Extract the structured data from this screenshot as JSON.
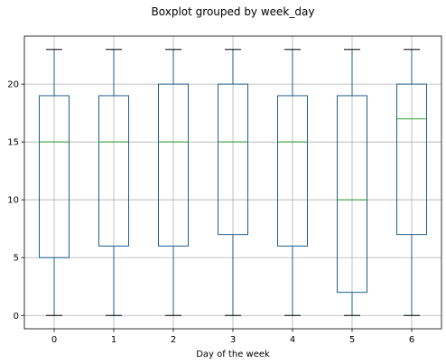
{
  "chart_data": {
    "type": "boxplot",
    "title": "Boxplot grouped by week_day",
    "xlabel": "Day of the week",
    "ylabel": "",
    "categories": [
      "0",
      "1",
      "2",
      "3",
      "4",
      "5",
      "6"
    ],
    "boxes": [
      {
        "category": "0",
        "min": 0,
        "q1": 5,
        "median": 15,
        "q3": 19,
        "max": 23
      },
      {
        "category": "1",
        "min": 0,
        "q1": 6,
        "median": 15,
        "q3": 19,
        "max": 23
      },
      {
        "category": "2",
        "min": 0,
        "q1": 6,
        "median": 15,
        "q3": 20,
        "max": 23
      },
      {
        "category": "3",
        "min": 0,
        "q1": 7,
        "median": 15,
        "q3": 20,
        "max": 23
      },
      {
        "category": "4",
        "min": 0,
        "q1": 6,
        "median": 15,
        "q3": 19,
        "max": 23
      },
      {
        "category": "5",
        "min": 0,
        "q1": 2,
        "median": 10,
        "q3": 19,
        "max": 23
      },
      {
        "category": "6",
        "min": 0,
        "q1": 7,
        "median": 17,
        "q3": 20,
        "max": 23
      }
    ],
    "ylim": [
      -1.15,
      24.15
    ],
    "yticks": [
      0,
      5,
      10,
      15,
      20
    ],
    "grid": true,
    "colors": {
      "box": "#1f5f8b",
      "median": "#2ca02c",
      "whisker": "#1f5f8b",
      "cap": "#000000",
      "grid": "#b0b0b0"
    }
  }
}
